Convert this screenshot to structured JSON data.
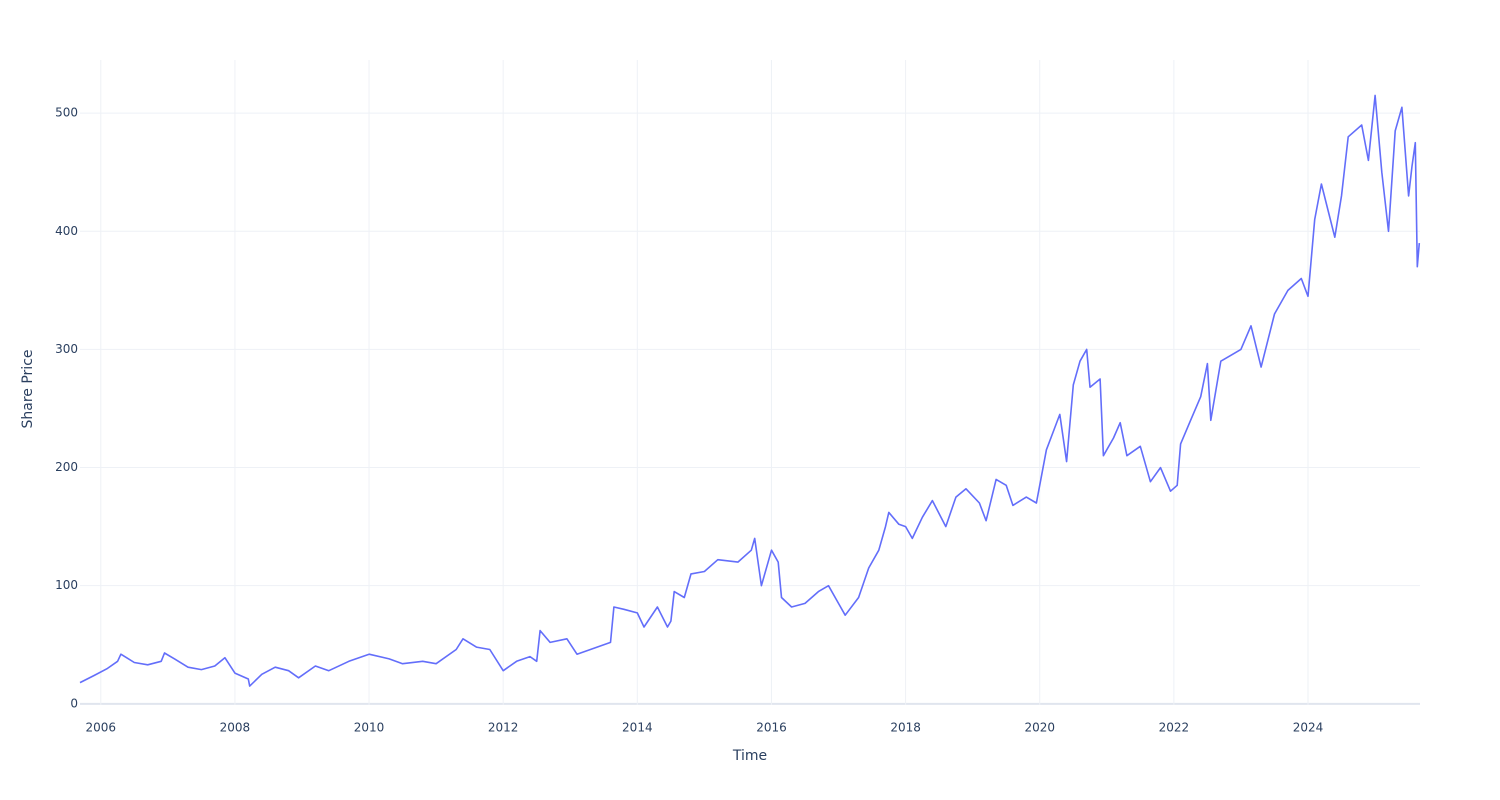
{
  "chart_data": {
    "type": "line",
    "x_label": "Time",
    "y_label": "Share Price",
    "series": [
      {
        "color": "#636efa",
        "x": [
          2005.69,
          2005.9,
          2006.1,
          2006.25,
          2006.3,
          2006.5,
          2006.7,
          2006.9,
          2006.95,
          2007.1,
          2007.3,
          2007.5,
          2007.7,
          2007.85,
          2008.0,
          2008.2,
          2008.22,
          2008.4,
          2008.6,
          2008.8,
          2008.95,
          2009.2,
          2009.4,
          2009.7,
          2010.0,
          2010.3,
          2010.5,
          2010.8,
          2011.0,
          2011.3,
          2011.4,
          2011.6,
          2011.8,
          2012.0,
          2012.2,
          2012.4,
          2012.5,
          2012.55,
          2012.7,
          2012.95,
          2013.1,
          2013.3,
          2013.6,
          2013.65,
          2013.8,
          2014.0,
          2014.1,
          2014.3,
          2014.45,
          2014.5,
          2014.55,
          2014.7,
          2014.8,
          2015.0,
          2015.2,
          2015.5,
          2015.7,
          2015.75,
          2015.85,
          2016.0,
          2016.1,
          2016.15,
          2016.3,
          2016.5,
          2016.7,
          2016.85,
          2017.0,
          2017.1,
          2017.3,
          2017.45,
          2017.6,
          2017.7,
          2017.75,
          2017.9,
          2018.0,
          2018.1,
          2018.25,
          2018.4,
          2018.6,
          2018.75,
          2018.9,
          2019.1,
          2019.2,
          2019.35,
          2019.5,
          2019.6,
          2019.8,
          2019.95,
          2020.1,
          2020.2,
          2020.3,
          2020.4,
          2020.5,
          2020.6,
          2020.7,
          2020.75,
          2020.9,
          2020.95,
          2021.1,
          2021.2,
          2021.3,
          2021.5,
          2021.65,
          2021.8,
          2021.95,
          2022.05,
          2022.1,
          2022.25,
          2022.4,
          2022.5,
          2022.55,
          2022.7,
          2022.85,
          2023.0,
          2023.15,
          2023.3,
          2023.5,
          2023.7,
          2023.9,
          2024.0,
          2024.1,
          2024.2,
          2024.4,
          2024.5,
          2024.6,
          2024.8,
          2024.9,
          2025.0,
          2025.1,
          2025.2,
          2025.3,
          2025.4,
          2025.5,
          2025.55,
          2025.6,
          2025.63,
          2025.66
        ],
        "values": [
          18,
          24,
          30,
          36,
          42,
          35,
          33,
          36,
          43,
          38,
          31,
          29,
          32,
          39,
          26,
          21,
          15,
          25,
          31,
          28,
          22,
          32,
          28,
          36,
          42,
          38,
          34,
          36,
          34,
          46,
          55,
          48,
          46,
          28,
          36,
          40,
          36,
          62,
          52,
          55,
          42,
          46,
          52,
          82,
          80,
          77,
          65,
          82,
          65,
          70,
          95,
          90,
          110,
          112,
          122,
          120,
          130,
          140,
          100,
          130,
          120,
          90,
          82,
          85,
          95,
          100,
          85,
          75,
          90,
          115,
          130,
          150,
          162,
          152,
          150,
          140,
          158,
          172,
          150,
          175,
          182,
          170,
          155,
          190,
          185,
          168,
          175,
          170,
          215,
          230,
          245,
          205,
          270,
          290,
          300,
          268,
          275,
          210,
          225,
          238,
          210,
          218,
          188,
          200,
          180,
          185,
          220,
          240,
          260,
          288,
          240,
          290,
          295,
          300,
          320,
          285,
          330,
          350,
          360,
          345,
          410,
          440,
          395,
          430,
          480,
          490,
          460,
          515,
          450,
          400,
          485,
          505,
          430,
          455,
          475,
          370,
          390
        ]
      }
    ],
    "xlim": [
      2005.69,
      2025.67
    ],
    "ylim": [
      -1,
      545
    ],
    "xticks": [
      2006,
      2008,
      2010,
      2012,
      2014,
      2016,
      2018,
      2020,
      2022,
      2024
    ],
    "yticks": [
      0,
      100,
      200,
      300,
      400,
      500
    ],
    "grid": true
  }
}
